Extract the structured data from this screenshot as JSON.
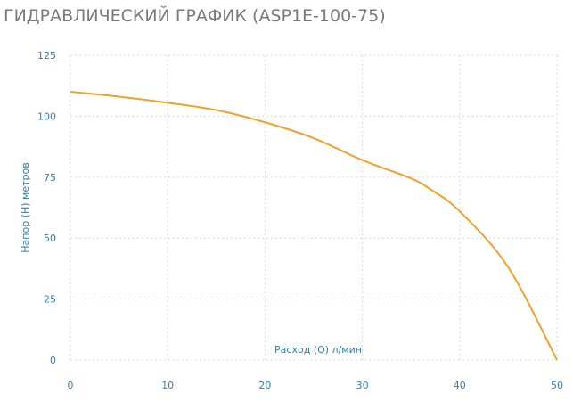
{
  "chart_data": {
    "type": "line",
    "title": "ГИДРАВЛИЧЕСКИЙ ГРАФИК (ASP1E-100-75)",
    "x_label": "Расход (Q) л/мин",
    "y_label": "Напор (H) метров",
    "x": [
      0,
      5,
      10,
      15,
      20,
      25,
      30,
      35,
      37,
      40,
      45,
      50
    ],
    "series": [
      {
        "name": "ASP1E-100-75",
        "color": "#f0a030",
        "values": [
          110,
          108,
          105.5,
          102.5,
          97.5,
          91,
          82,
          74.5,
          70,
          61,
          38,
          0
        ]
      }
    ],
    "xlim": [
      0,
      50
    ],
    "xticks": [
      0,
      10,
      20,
      30,
      40,
      50
    ],
    "ylim": [
      0,
      125
    ],
    "yticks": [
      0,
      25,
      50,
      75,
      100,
      125
    ],
    "grid": true
  }
}
